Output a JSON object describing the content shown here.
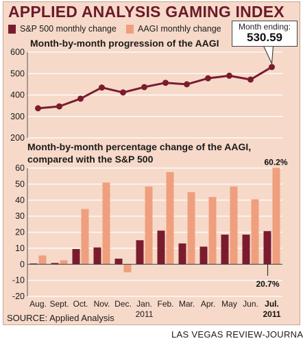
{
  "title": "APPLIED ANALYSIS GAMING INDEX",
  "legend": [
    {
      "label": "S&P 500 monthly change",
      "color": "#7a1c2e"
    },
    {
      "label": "AAGI monthly change",
      "color": "#ef9f7e"
    }
  ],
  "callout": {
    "label": "Month ending:",
    "value": "530.59"
  },
  "source": "SOURCE: Applied Analysis",
  "credit": "LAS VEGAS REVIEW-JOURNAL",
  "colors": {
    "background": "#f6d9c9",
    "line": "#7a1c2e",
    "sp500": "#7a1c2e",
    "aagi": "#ef9f7e",
    "title": "#6b1a2a"
  },
  "chart_data": [
    {
      "type": "line",
      "title": "Month-by-month progression of the AAGI",
      "x": [
        "Aug.",
        "Sept.",
        "Oct.",
        "Nov.",
        "Dec.",
        "Jan.",
        "Feb.",
        "Mar.",
        "Apr.",
        "May",
        "Jun.",
        "Jul."
      ],
      "series": [
        {
          "values": [
            338,
            347,
            383,
            435,
            412,
            437,
            457,
            450,
            478,
            490,
            472,
            530.59
          ]
        }
      ],
      "ylim": [
        200,
        600
      ],
      "yticks": [
        200,
        300,
        400,
        500,
        600
      ],
      "grid": true
    },
    {
      "type": "bar",
      "title": "Month-by-month percentage change of the AAGI, compared with the S&P 500",
      "categories": [
        "Aug.",
        "Sept.",
        "Oct.",
        "Nov.",
        "Dec.",
        "Jan.",
        "Feb.",
        "Mar.",
        "Apr.",
        "May",
        "Jun.",
        "Jul."
      ],
      "category_sublabels": [
        "",
        "",
        "",
        "",
        "",
        "2011",
        "",
        "",
        "",
        "",
        "",
        "2011"
      ],
      "series": [
        {
          "name": "S&P 500 monthly change",
          "values": [
            0.5,
            0.8,
            9.5,
            10.5,
            3.5,
            15,
            21,
            13,
            11,
            18.5,
            18.5,
            20.7
          ]
        },
        {
          "name": "AAGI monthly change",
          "values": [
            5.5,
            2.5,
            34.5,
            51,
            -5,
            48.5,
            57.5,
            45,
            42,
            48.5,
            40.5,
            60.2
          ]
        }
      ],
      "data_labels": [
        {
          "series": "AAGI monthly change",
          "category": "Jul.",
          "text": "60.2%"
        },
        {
          "series": "S&P 500 monthly change",
          "category": "Jul.",
          "text": "20.7%"
        }
      ],
      "ylim": [
        -20,
        60
      ],
      "yticks": [
        -20,
        -10,
        0,
        10,
        20,
        30,
        40,
        50,
        60
      ],
      "grid": true
    }
  ]
}
